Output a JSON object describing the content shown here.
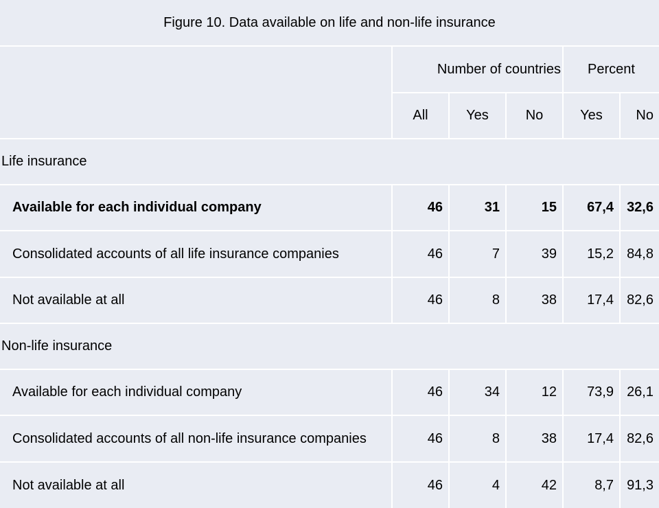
{
  "title": "Figure 10. Data available on life and non-life insurance",
  "header": {
    "group1": "Number of countries",
    "group2": "Percent",
    "cols": [
      "All",
      "Yes",
      "No",
      "Yes",
      "No"
    ]
  },
  "sections": [
    {
      "label": "Life insurance",
      "rows": [
        {
          "label": "Available for each individual company",
          "all": "46",
          "yes": "31",
          "no": "15",
          "pyes": "67,4",
          "pno": "32,6",
          "bold": true
        },
        {
          "label": "Consolidated accounts of all life insurance companies",
          "all": "46",
          "yes": "7",
          "no": "39",
          "pyes": "15,2",
          "pno": "84,8"
        },
        {
          "label": "Not available at all",
          "all": "46",
          "yes": "8",
          "no": "38",
          "pyes": "17,4",
          "pno": "82,6"
        }
      ]
    },
    {
      "label": "Non-life insurance",
      "rows": [
        {
          "label": "Available for each individual company",
          "all": "46",
          "yes": "34",
          "no": "12",
          "pyes": "73,9",
          "pno": "26,1"
        },
        {
          "label": "Consolidated accounts of all non-life insurance companies",
          "all": "46",
          "yes": "8",
          "no": "38",
          "pyes": "17,4",
          "pno": "82,6"
        },
        {
          "label": "Not available at all",
          "all": "46",
          "yes": "4",
          "no": "42",
          "pyes": "8,7",
          "pno": "91,3"
        }
      ]
    }
  ]
}
